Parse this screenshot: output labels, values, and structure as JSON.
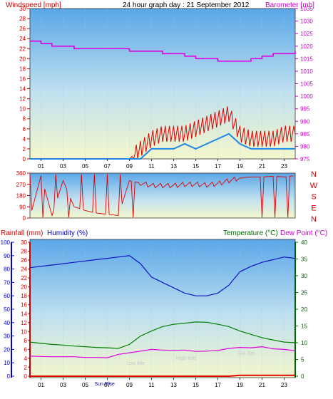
{
  "page": {
    "title": "24 hour graph day : 21 September 2012"
  },
  "colors": {
    "wind": "#e00000",
    "gust": "#e00000",
    "windavg": "#1e88e5",
    "baro": "#e000e0",
    "dir": "#e00000",
    "rain": "#e00000",
    "humidity": "#1010c0",
    "temp": "#008000",
    "dew": "#e000e0",
    "axis_red": "#cc0000",
    "axis_blue": "#0000cc",
    "axis_green": "#006400"
  },
  "x_ticks": [
    "01",
    "03",
    "05",
    "07",
    "09",
    "11",
    "13",
    "15",
    "17",
    "19",
    "21",
    "23"
  ],
  "chart_data": [
    {
      "type": "line",
      "panel": "wind-barometer",
      "title": "24 hour graph day : 21 September 2012",
      "ylabel_left": "Windspeed [mph]",
      "ylabel_right": "Barometer [mb]",
      "ylim_left": [
        0,
        30
      ],
      "ylim_right": [
        975,
        1035
      ],
      "left_ticks": [
        "30",
        "28",
        "26",
        "24",
        "22",
        "20",
        "18",
        "16",
        "14",
        "12",
        "10",
        "8",
        "6",
        "4",
        "2",
        "0"
      ],
      "right_ticks": [
        "1035",
        "1030",
        "1025",
        "1020",
        "1015",
        "1010",
        "1005",
        "1000",
        "995",
        "990",
        "985",
        "980",
        "975"
      ],
      "x": [
        0,
        1,
        2,
        3,
        4,
        5,
        6,
        7,
        8,
        9,
        10,
        11,
        12,
        13,
        14,
        15,
        16,
        17,
        18,
        19,
        20,
        21,
        22,
        23,
        24
      ],
      "series": [
        {
          "key": "gust",
          "values": [
            0,
            0,
            0,
            0,
            0,
            0,
            0,
            0,
            0,
            0,
            2,
            4,
            5,
            5,
            5,
            6,
            7,
            8,
            9,
            5,
            4,
            4,
            4,
            5,
            5
          ]
        },
        {
          "key": "windavg",
          "values": [
            0,
            0,
            0,
            0,
            0,
            0,
            0,
            0,
            0,
            0,
            0,
            2,
            2,
            2,
            3,
            2,
            3,
            4,
            5,
            3,
            2,
            2,
            2,
            2,
            2
          ]
        },
        {
          "key": "baro",
          "values": [
            1022,
            1021,
            1020,
            1020,
            1019,
            1019,
            1019,
            1019,
            1019,
            1018,
            1018,
            1018,
            1017,
            1017,
            1016,
            1015,
            1015,
            1014,
            1014,
            1014,
            1015,
            1016,
            1017,
            1017,
            1018
          ]
        }
      ]
    },
    {
      "type": "line",
      "panel": "wind-direction",
      "ylim": [
        0,
        360
      ],
      "left_ticks": [
        "360",
        "270",
        "180",
        "90",
        "0"
      ],
      "compass": [
        "N",
        "W",
        "S",
        "E",
        "N"
      ],
      "series": [
        {
          "key": "dir",
          "values": [
            5,
            340,
            20,
            300,
            90,
            60,
            40,
            30,
            20,
            300,
            280,
            260,
            260,
            260,
            270,
            270,
            265,
            275,
            300,
            320,
            330,
            330,
            335,
            330,
            340
          ]
        }
      ]
    },
    {
      "type": "line",
      "panel": "rain-humidity-temp",
      "ylabel_rain": "Rainfall (mm)",
      "ylabel_humidity": "Humidity (%)",
      "ylabel_temp": "Temperature (°C)",
      "ylabel_dew": "Dew Point (°C)",
      "ylim_humidity": [
        0,
        100
      ],
      "ylim_rain": [
        0,
        30
      ],
      "ylim_temp": [
        0,
        40
      ],
      "humidity_ticks": [
        "100",
        "90",
        "80",
        "70",
        "60",
        "50",
        "40",
        "30",
        "20",
        "10",
        "0"
      ],
      "rain_ticks": [
        "30",
        "28",
        "26",
        "24",
        "22",
        "20",
        "18",
        "16",
        "14",
        "12",
        "10",
        "8",
        "6",
        "4",
        "2",
        "0"
      ],
      "temp_ticks": [
        "40",
        "35",
        "30",
        "25",
        "20",
        "15",
        "10",
        "5",
        "0"
      ],
      "annotations": [
        "Sun Rise",
        "Low tide",
        "High tide",
        "Sun Set",
        "Low tide",
        "Sun Rise"
      ],
      "x": [
        0,
        1,
        2,
        3,
        4,
        5,
        6,
        7,
        8,
        9,
        10,
        11,
        12,
        13,
        14,
        15,
        16,
        17,
        18,
        19,
        20,
        21,
        22,
        23,
        24
      ],
      "series": [
        {
          "key": "humidity",
          "values": [
            81,
            82,
            83,
            84,
            85,
            86,
            87,
            88,
            89,
            90,
            84,
            74,
            70,
            66,
            62,
            60,
            60,
            62,
            68,
            78,
            82,
            85,
            87,
            89,
            88
          ]
        },
        {
          "key": "temp",
          "values": [
            10.2,
            9.8,
            9.5,
            9.3,
            9.0,
            8.8,
            8.6,
            8.5,
            8.3,
            9.5,
            12,
            13.5,
            14.8,
            15.5,
            15.8,
            16.2,
            16.1,
            15.5,
            14.8,
            13.5,
            12.5,
            11.5,
            10.8,
            10.2,
            10.0
          ]
        },
        {
          "key": "dew",
          "values": [
            6.0,
            5.9,
            5.8,
            5.8,
            5.8,
            5.6,
            5.6,
            5.5,
            6.5,
            7.0,
            7.5,
            8.0,
            7.8,
            7.7,
            7.8,
            7.4,
            7.5,
            7.7,
            8.3,
            8.6,
            8.5,
            8.8,
            8.2,
            8.0,
            7.6
          ]
        },
        {
          "key": "rain",
          "values": [
            0,
            0,
            0,
            0,
            0,
            0,
            0,
            0,
            0,
            0,
            0,
            0,
            0,
            0,
            0,
            0,
            0,
            0,
            0,
            0.2,
            0.2,
            0.2,
            0.2,
            0.2,
            0.2
          ]
        }
      ]
    }
  ]
}
